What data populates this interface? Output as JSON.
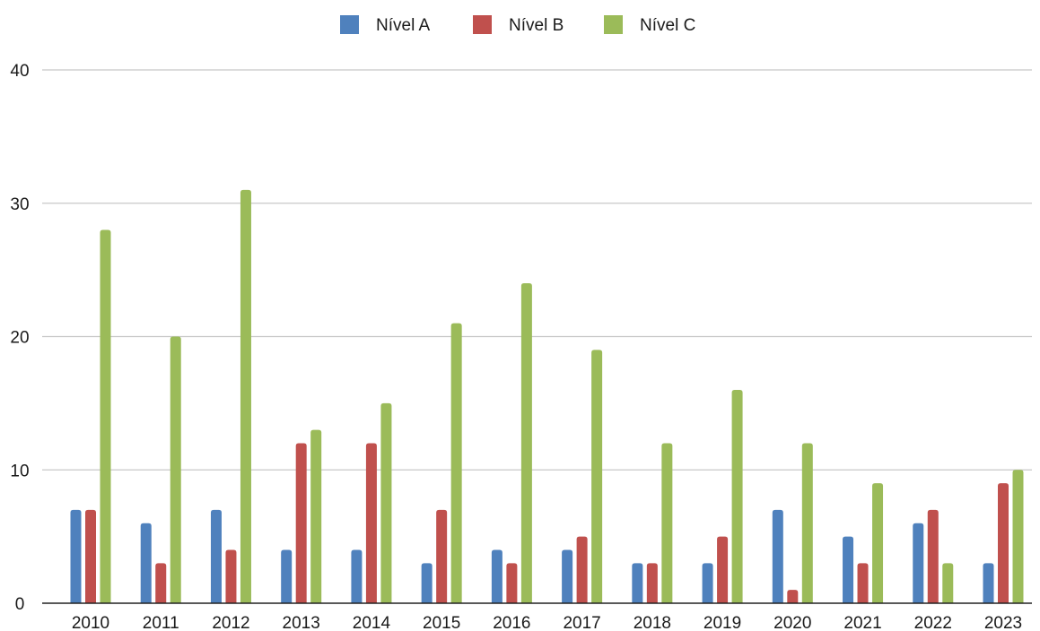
{
  "chart_data": {
    "type": "bar",
    "categories": [
      "2010",
      "2011",
      "2012",
      "2013",
      "2014",
      "2015",
      "2016",
      "2017",
      "2018",
      "2019",
      "2020",
      "2021",
      "2022",
      "2023"
    ],
    "series": [
      {
        "name": "Nível A",
        "color": "#4f81bd",
        "values": [
          7,
          6,
          7,
          4,
          4,
          3,
          4,
          4,
          3,
          3,
          7,
          5,
          6,
          3
        ]
      },
      {
        "name": "Nível B",
        "color": "#c0504d",
        "values": [
          7,
          3,
          4,
          12,
          12,
          7,
          3,
          5,
          3,
          5,
          1,
          3,
          7,
          9
        ]
      },
      {
        "name": "Nível C",
        "color": "#9bbb59",
        "values": [
          28,
          20,
          31,
          13,
          15,
          21,
          24,
          19,
          12,
          16,
          12,
          9,
          3,
          10
        ]
      }
    ],
    "ylim": [
      0,
      40
    ],
    "yticks": [
      0,
      10,
      20,
      30,
      40
    ],
    "grid": true,
    "legend_position": "top-center"
  }
}
